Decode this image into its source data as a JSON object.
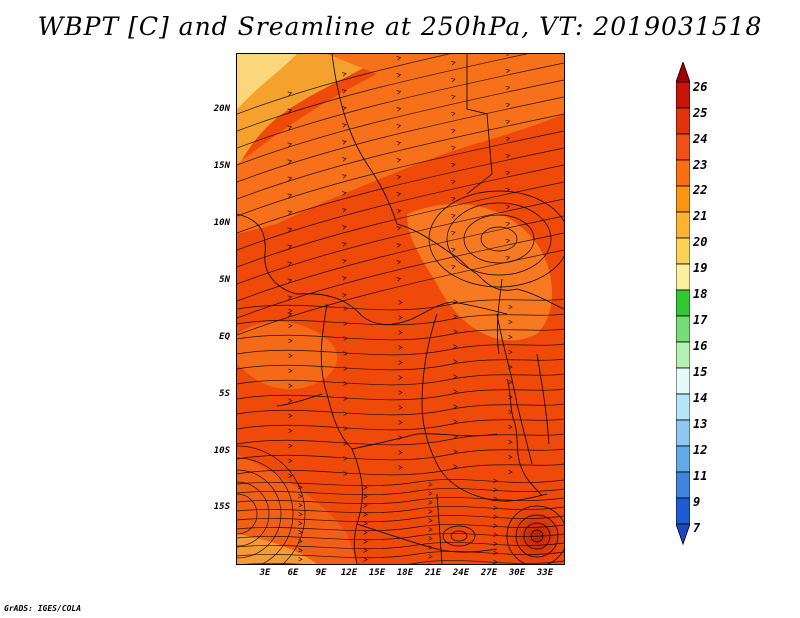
{
  "title": "WBPT [C] and Sreamline at 250hPa, VT: 2019031518",
  "credit": "GrADS: IGES/COLA",
  "map": {
    "lat_labels": [
      "20N",
      "15N",
      "10N",
      "5N",
      "EQ",
      "5S",
      "10S",
      "15S"
    ],
    "lon_labels": [
      "3E",
      "6E",
      "9E",
      "12E",
      "15E",
      "18E",
      "21E",
      "24E",
      "27E",
      "30E",
      "33E"
    ],
    "shading": {
      "hot": "#f04a0a",
      "warm": "#fa7818",
      "cool": "#f5aa32",
      "pale": "#fbd67a",
      "deep": "#d02c0a"
    }
  },
  "colorbar": {
    "labels": [
      "26",
      "25",
      "24",
      "23",
      "22",
      "21",
      "20",
      "19",
      "18",
      "17",
      "16",
      "15",
      "14",
      "13",
      "12",
      "11",
      "9",
      "7"
    ],
    "colors": [
      "#a00000",
      "#c8140a",
      "#e1320a",
      "#f05014",
      "#fa6e14",
      "#fa9614",
      "#fab432",
      "#fad25a",
      "#fcf0a0",
      "#32c832",
      "#78dc78",
      "#b4f0b4",
      "#e6fafa",
      "#b4e6fa",
      "#8cc8f0",
      "#64aae6",
      "#4182dc",
      "#1e5ad2",
      "#1e46be"
    ]
  }
}
